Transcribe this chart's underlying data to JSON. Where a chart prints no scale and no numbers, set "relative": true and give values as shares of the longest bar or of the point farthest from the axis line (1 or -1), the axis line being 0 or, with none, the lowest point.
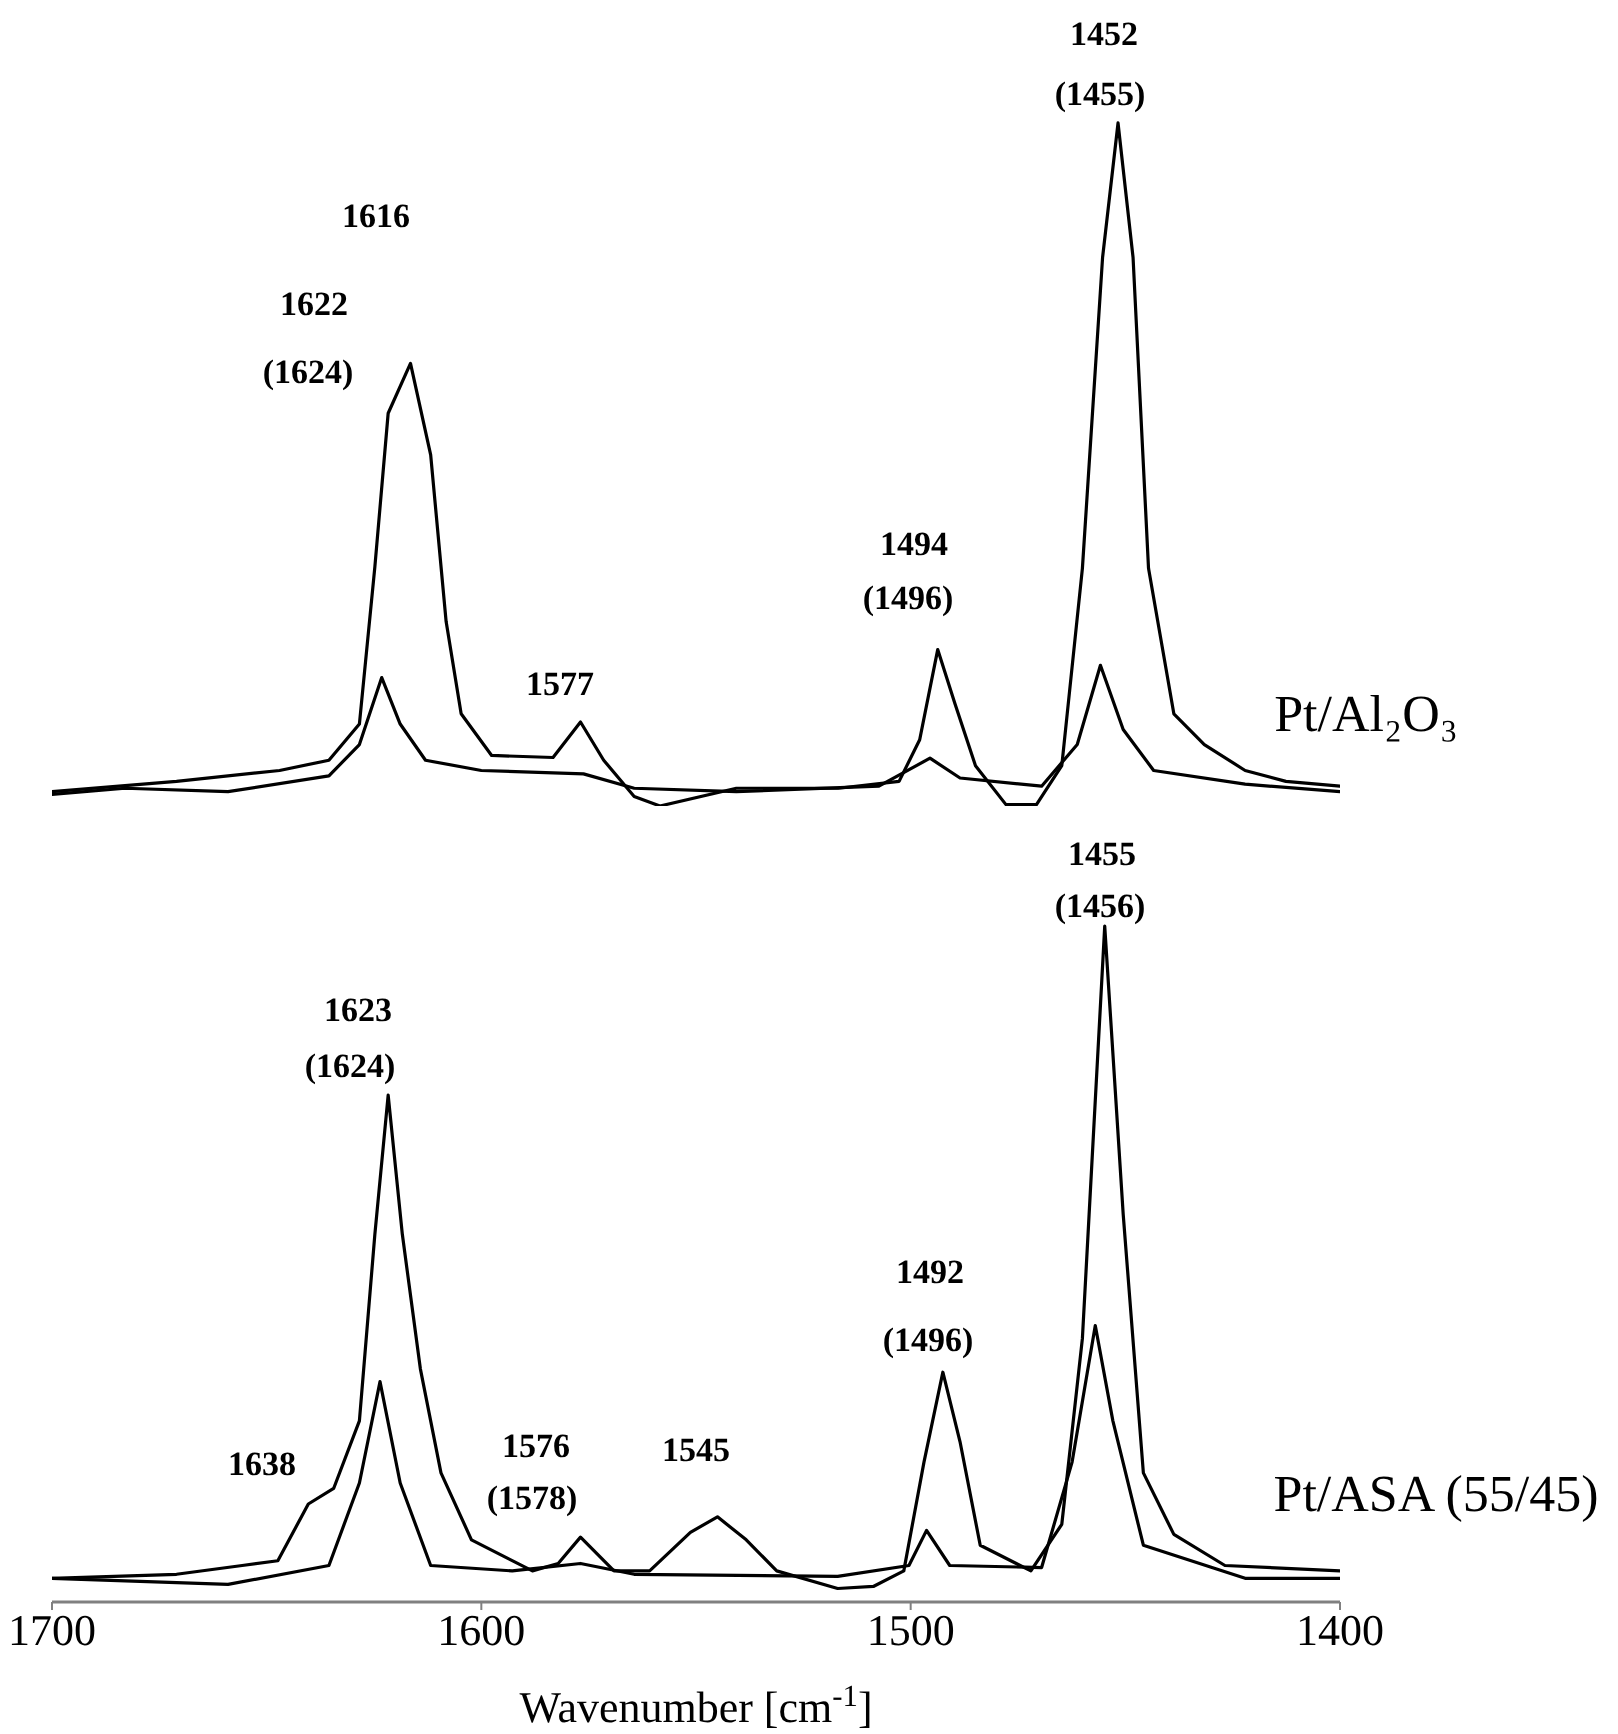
{
  "chart_data": [
    {
      "type": "line",
      "relative": true,
      "marker": "none",
      "tick_labels": false,
      "xlim": [
        1700,
        1400
      ],
      "xticks": [
        1700,
        1600,
        1500,
        1400
      ],
      "series": [
        {
          "color": "#000000",
          "x": [
            1700,
            1671,
            1647,
            1635.5,
            1628.4,
            1624.8,
            1621.7,
            1616.5,
            1611.8,
            1608.2,
            1604.7,
            1597.6,
            1583.3,
            1576.9,
            1571.5,
            1564.4,
            1558.4,
            1540.6,
            1516.9,
            1502.7,
            1497.9,
            1493.7,
            1489.7,
            1484.9,
            1477.8,
            1470.7,
            1464.8,
            1460,
            1455.3,
            1451.7,
            1448.2,
            1444.6,
            1438.7,
            1431.6,
            1422.1,
            1412.6,
            1400
          ],
          "values": [
            0.021,
            0.036,
            0.052,
            0.067,
            0.12,
            0.35,
            0.575,
            0.648,
            0.514,
            0.27,
            0.135,
            0.074,
            0.071,
            0.123,
            0.067,
            0.014,
            0,
            0.026,
            0.026,
            0.036,
            0.097,
            0.229,
            0.15,
            0.059,
            0.002,
            0.002,
            0.059,
            0.348,
            0.803,
            1,
            0.803,
            0.348,
            0.135,
            0.09,
            0.052,
            0.036,
            0.029
          ]
        },
        {
          "color": "#000000",
          "x": [
            1700,
            1683,
            1659,
            1635.5,
            1628.4,
            1623.2,
            1618.9,
            1613,
            1600,
            1576.2,
            1564.4,
            1540.6,
            1507.4,
            1495.5,
            1488.5,
            1469.5,
            1461.2,
            1455.8,
            1450.5,
            1443.4,
            1422.1,
            1400
          ],
          "values": [
            0.017,
            0.026,
            0.021,
            0.044,
            0.09,
            0.188,
            0.12,
            0.067,
            0.052,
            0.047,
            0.026,
            0.021,
            0.029,
            0.07,
            0.041,
            0.029,
            0.09,
            0.206,
            0.112,
            0.052,
            0.032,
            0.021
          ]
        }
      ],
      "annotations": [
        "1616",
        "1622",
        "(1624)",
        "1577",
        "1494",
        "(1496)",
        "1452",
        "(1455)",
        "Pt/Al₂O₃"
      ]
    },
    {
      "type": "line",
      "relative": true,
      "marker": "none",
      "tick_labels": "x",
      "xlabel": "Wavenumber [cm$^{-1}$]",
      "xlim": [
        1700,
        1400
      ],
      "xticks": [
        1700,
        1600,
        1500,
        1400
      ],
      "series": [
        {
          "color": "#000000",
          "x": [
            1700,
            1671,
            1655.7,
            1647.4,
            1640.3,
            1634.4,
            1628.4,
            1624.8,
            1621.7,
            1618.4,
            1614.2,
            1609.4,
            1602.3,
            1588.1,
            1582.1,
            1576.9,
            1569.1,
            1560.8,
            1551.3,
            1545,
            1538.3,
            1531.2,
            1517,
            1508.7,
            1501.6,
            1496.9,
            1492.5,
            1488.5,
            1483.8,
            1472,
            1464.8,
            1460,
            1454.8,
            1450.5,
            1445.8,
            1438.7,
            1426.8,
            1400
          ],
          "values": [
            0.035,
            0.041,
            0.054,
            0.061,
            0.145,
            0.168,
            0.268,
            0.544,
            0.75,
            0.544,
            0.345,
            0.191,
            0.092,
            0.046,
            0.057,
            0.096,
            0.046,
            0.046,
            0.103,
            0.126,
            0.092,
            0.046,
            0.02,
            0.023,
            0.046,
            0.207,
            0.34,
            0.237,
            0.084,
            0.046,
            0.115,
            0.39,
            1,
            0.574,
            0.191,
            0.1,
            0.054,
            0.046
          ]
        },
        {
          "color": "#000000",
          "x": [
            1700,
            1659,
            1635.5,
            1628.4,
            1623.6,
            1618.9,
            1611.8,
            1592.8,
            1576.9,
            1564.4,
            1517,
            1500.4,
            1496.3,
            1490.9,
            1469.5,
            1462.4,
            1457,
            1452.9,
            1445.8,
            1422.1,
            1400
          ],
          "values": [
            0.035,
            0.026,
            0.054,
            0.176,
            0.326,
            0.176,
            0.054,
            0.046,
            0.057,
            0.041,
            0.038,
            0.054,
            0.106,
            0.054,
            0.051,
            0.207,
            0.409,
            0.268,
            0.084,
            0.035,
            0.035
          ]
        }
      ],
      "annotations": [
        "1638",
        "1623",
        "(1624)",
        "1576",
        "(1578)",
        "1545",
        "1492",
        "(1496)",
        "1455",
        "(1456)",
        "Pt/ASA (55/45)"
      ]
    }
  ]
}
